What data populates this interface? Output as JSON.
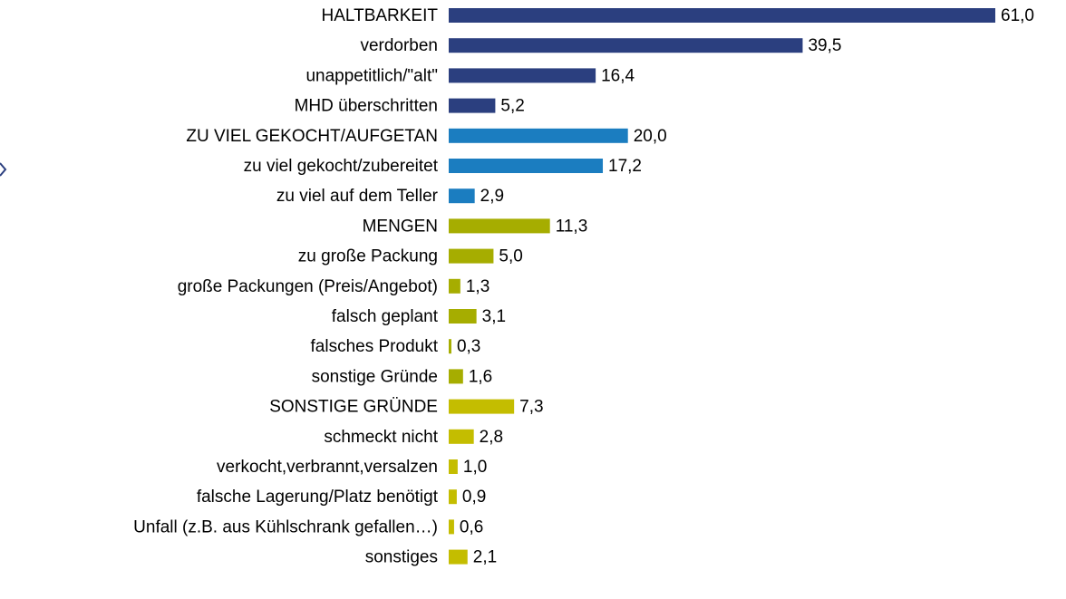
{
  "chart_data": {
    "type": "bar",
    "orientation": "horizontal",
    "categories": [
      "HALTBARKEIT",
      "verdorben",
      "unappetitlich/\"alt\"",
      "MHD überschritten",
      "ZU VIEL GEKOCHT/AUFGETAN",
      "zu viel gekocht/zubereitet",
      "zu viel auf dem Teller",
      "MENGEN",
      "zu große Packung",
      "große Packungen (Preis/Angebot)",
      "falsch geplant",
      "falsches Produkt",
      "sonstige Gründe",
      "SONSTIGE GRÜNDE",
      "schmeckt nicht",
      "verkocht,verbrannt,versalzen",
      "falsche Lagerung/Platz benötigt",
      "Unfall (z.B. aus Kühlschrank gefallen…)",
      "sonstiges"
    ],
    "values": [
      61.0,
      39.5,
      16.4,
      5.2,
      20.0,
      17.2,
      2.9,
      11.3,
      5.0,
      1.3,
      3.1,
      0.3,
      1.6,
      7.3,
      2.8,
      1.0,
      0.9,
      0.6,
      2.1
    ],
    "value_labels": [
      "61,0",
      "39,5",
      "16,4",
      "5,2",
      "20,0",
      "17,2",
      "2,9",
      "11,3",
      "5,0",
      "1,3",
      "3,1",
      "0,3",
      "1,6",
      "7,3",
      "2,8",
      "1,0",
      "0,9",
      "0,6",
      "2,1"
    ],
    "colors": [
      "#2b3f7f",
      "#2b3f7f",
      "#2b3f7f",
      "#2b3f7f",
      "#1b7dc0",
      "#1b7dc0",
      "#1b7dc0",
      "#a6ad00",
      "#a6ad00",
      "#a6ad00",
      "#a6ad00",
      "#a6ad00",
      "#a6ad00",
      "#c4bd00",
      "#c4bd00",
      "#c4bd00",
      "#c4bd00",
      "#c4bd00",
      "#c4bd00"
    ]
  }
}
